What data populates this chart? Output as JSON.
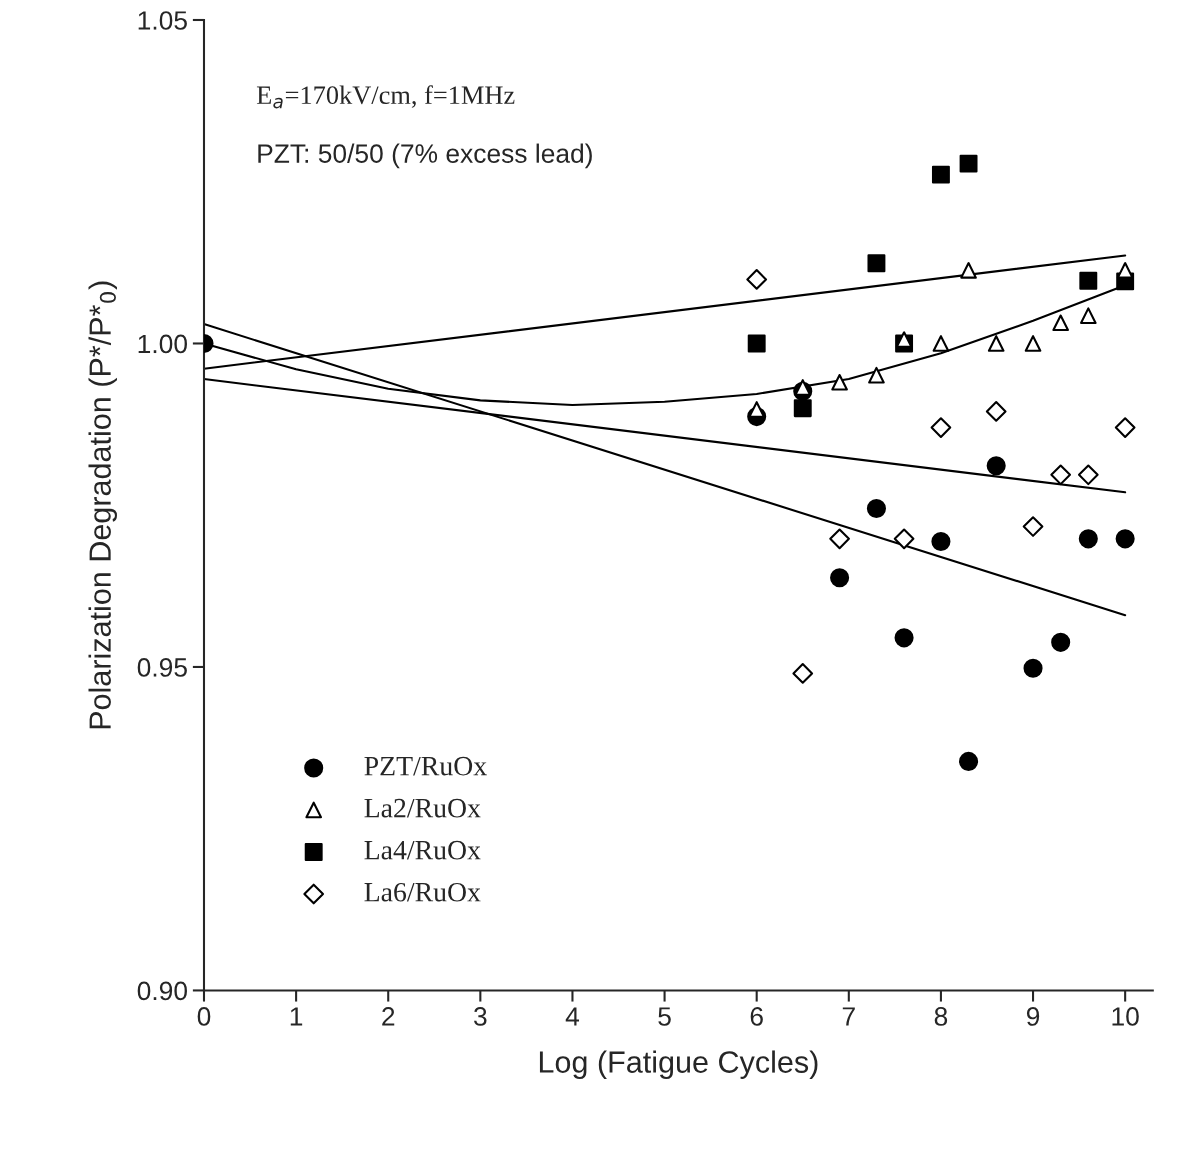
{
  "chart_data": {
    "type": "scatter",
    "xlabel": "Log (Fatigue Cycles)",
    "ylabel": "Polarization Degradation (P*/P*$_{0}$)",
    "xlim": [
      0,
      10.3
    ],
    "ylim": [
      0.9,
      1.05
    ],
    "xticks": [
      0,
      1,
      2,
      3,
      4,
      5,
      6,
      7,
      8,
      9,
      10
    ],
    "yticks": [
      {
        "value": 0.9,
        "label": "0.90"
      },
      {
        "value": 0.95,
        "label": "0.95"
      },
      {
        "value": 1.0,
        "label": "1.00"
      },
      {
        "value": 1.05,
        "label": "1.05"
      }
    ],
    "grid": false,
    "legend": "bottom left",
    "annotations": [
      "E$_{a}$=170kV/cm, f=1MHz",
      "PZT: 50/50 (7% excess lead)"
    ],
    "series": [
      {
        "name": "PZT/RuOx",
        "color": "#000000",
        "marker": "circle",
        "x": [
          0,
          6.0,
          6.5,
          6.9,
          7.3,
          7.6,
          8.0,
          8.3,
          8.6,
          9.0,
          9.3,
          9.6,
          10.0
        ],
        "values": [
          1.0,
          0.9887,
          0.9926,
          0.9638,
          0.9745,
          0.9545,
          0.9694,
          0.9354,
          0.9811,
          0.9498,
          0.9538,
          0.9698,
          0.9698
        ]
      },
      {
        "name": "La2/RuOx",
        "color": "#000000",
        "marker": "triangle",
        "x": [
          6.0,
          6.5,
          6.9,
          7.3,
          7.6,
          8.0,
          8.3,
          8.6,
          9.0,
          9.3,
          9.6,
          10.0
        ],
        "values": [
          0.9898,
          0.9932,
          0.994,
          0.9951,
          1.0006,
          1.0,
          1.0113,
          1.0,
          1.0,
          1.0032,
          1.0043,
          1.0113
        ]
      },
      {
        "name": "La4/RuOx",
        "color": "#000000",
        "marker": "square",
        "x": [
          6.0,
          6.5,
          7.3,
          7.6,
          8.0,
          8.3,
          9.6,
          10.0
        ],
        "values": [
          1.0,
          0.99,
          1.0124,
          1.0,
          1.0261,
          1.0278,
          1.0097,
          1.0096
        ]
      },
      {
        "name": "La6/RuOx",
        "color": "#000000",
        "marker": "diamond",
        "x": [
          6.0,
          6.5,
          6.9,
          7.6,
          8.0,
          8.6,
          9.0,
          9.3,
          9.6,
          10.0
        ],
        "values": [
          1.0099,
          0.949,
          0.9698,
          0.9698,
          0.987,
          0.9895,
          0.9717,
          0.9797,
          0.9797,
          0.987
        ]
      },
      {
        "type": "line",
        "color": "#000000",
        "x": [
          0,
          10
        ],
        "values": [
          0.9961,
          1.0136
        ]
      },
      {
        "type": "line",
        "color": "#000000",
        "x": [
          0,
          1,
          2,
          3,
          4,
          5,
          6,
          7,
          8,
          9,
          10
        ],
        "values": [
          1.0,
          0.996,
          0.993,
          0.9912,
          0.9905,
          0.991,
          0.9922,
          0.9945,
          0.9985,
          1.0035,
          1.009
        ]
      },
      {
        "type": "line",
        "color": "#000000",
        "x": [
          0,
          10
        ],
        "values": [
          0.9945,
          0.977
        ]
      },
      {
        "type": "line",
        "color": "#000000",
        "x": [
          0,
          10
        ],
        "values": [
          1.003,
          0.958
        ]
      }
    ]
  }
}
